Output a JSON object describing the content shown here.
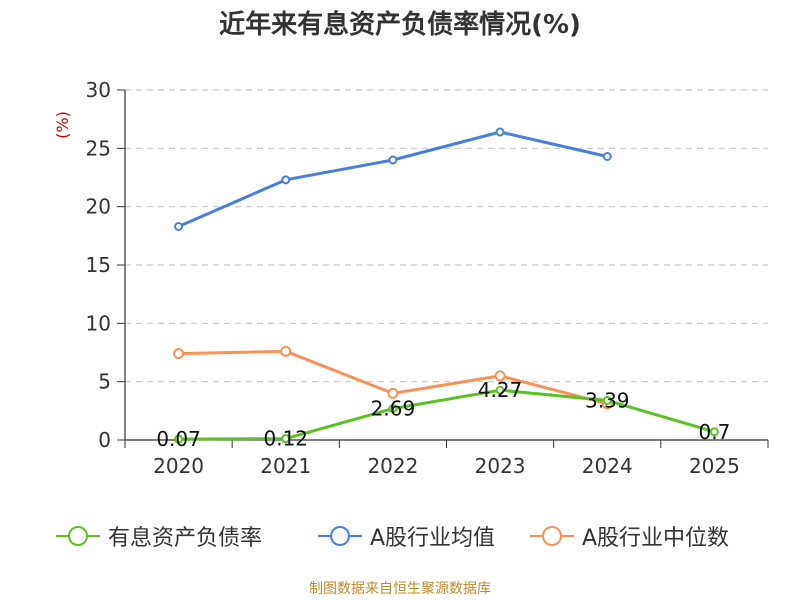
{
  "chart_data": {
    "type": "line",
    "title": "近年来有息资产负债率情况(%)",
    "ylabel": "(%)",
    "xlabel": "",
    "categories": [
      "2020",
      "2021",
      "2022",
      "2023",
      "2024",
      "2025"
    ],
    "ylim": [
      0,
      30
    ],
    "yticks": [
      0,
      5,
      10,
      15,
      20,
      25,
      30
    ],
    "grid": true,
    "legend_position": "bottom",
    "series": [
      {
        "name": "有息资产负债率",
        "color": "#5cc122",
        "values": [
          0.07,
          0.12,
          2.69,
          4.27,
          3.39,
          0.7
        ],
        "labels": [
          "0.07",
          "0.12",
          "2.69",
          "4.27",
          "3.39",
          "0.7"
        ]
      },
      {
        "name": "A股行业均值",
        "color": "#4a7fd9",
        "values": [
          18.3,
          22.3,
          24.0,
          26.4,
          24.3,
          null
        ]
      },
      {
        "name": "A股行业中位数",
        "color": "#f7935a",
        "values": [
          7.4,
          7.6,
          4.0,
          5.5,
          3.1,
          null
        ]
      }
    ]
  },
  "source": "制图数据来自恒生聚源数据库"
}
